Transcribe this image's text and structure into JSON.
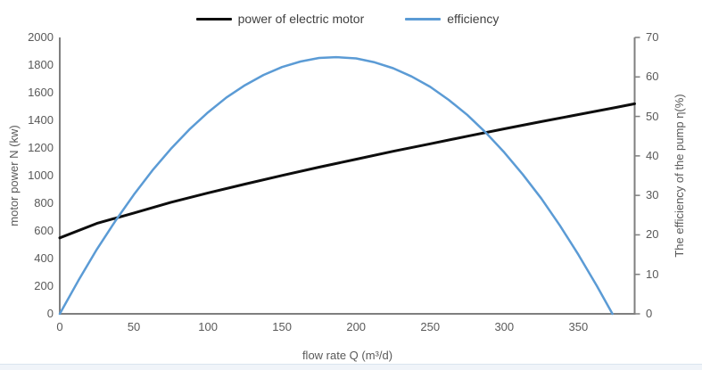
{
  "chart_data": {
    "type": "line",
    "title": "",
    "legend_position": "top",
    "grid": false,
    "background_color": "#ffffff",
    "axis_color": "#7f7f7f",
    "text_color": "#595959",
    "x": {
      "title": "flow rate Q (m³/d)",
      "min": 0,
      "max": 388,
      "ticks": [
        0,
        50,
        100,
        150,
        200,
        250,
        300,
        350
      ]
    },
    "y_left": {
      "title": "motor power N (kw)",
      "min": 0,
      "max": 2000,
      "ticks": [
        0,
        200,
        400,
        600,
        800,
        1000,
        1200,
        1400,
        1600,
        1800,
        2000
      ]
    },
    "y_right": {
      "title": "The efficiency of the pump η(%)",
      "min": 0,
      "max": 70,
      "ticks": [
        0,
        10,
        20,
        30,
        40,
        50,
        60,
        70
      ]
    },
    "series": [
      {
        "name": "power of electric motor",
        "axis": "left",
        "color": "#0d0d0d",
        "width": 3,
        "points": [
          [
            0,
            550
          ],
          [
            25,
            654
          ],
          [
            50,
            730
          ],
          [
            75,
            807
          ],
          [
            100,
            875
          ],
          [
            125,
            939
          ],
          [
            150,
            1001
          ],
          [
            175,
            1061
          ],
          [
            200,
            1119
          ],
          [
            225,
            1176
          ],
          [
            250,
            1230
          ],
          [
            275,
            1285
          ],
          [
            300,
            1339
          ],
          [
            325,
            1391
          ],
          [
            350,
            1442
          ],
          [
            375,
            1493
          ],
          [
            388,
            1520
          ]
        ]
      },
      {
        "name": "efficiency",
        "axis": "right",
        "color": "#5b9bd5",
        "width": 2.5,
        "points": [
          [
            0,
            0
          ],
          [
            12.5,
            8.4
          ],
          [
            25,
            16.3
          ],
          [
            37.5,
            23.5
          ],
          [
            50,
            30.2
          ],
          [
            62.5,
            36.3
          ],
          [
            75,
            41.8
          ],
          [
            87.5,
            46.7
          ],
          [
            100,
            51.0
          ],
          [
            112.5,
            54.8
          ],
          [
            125,
            57.9
          ],
          [
            137.5,
            60.5
          ],
          [
            150,
            62.5
          ],
          [
            162.5,
            63.9
          ],
          [
            175,
            64.8
          ],
          [
            186.5,
            65.0
          ],
          [
            200,
            64.7
          ],
          [
            212.5,
            63.7
          ],
          [
            225,
            62.2
          ],
          [
            237.5,
            60.1
          ],
          [
            250,
            57.5
          ],
          [
            262.5,
            54.2
          ],
          [
            275,
            50.4
          ],
          [
            287.5,
            45.9
          ],
          [
            300,
            40.9
          ],
          [
            312.5,
            35.3
          ],
          [
            325,
            29.2
          ],
          [
            337.5,
            22.4
          ],
          [
            350,
            15.0
          ],
          [
            362.5,
            7.1
          ],
          [
            373,
            0
          ]
        ]
      }
    ]
  }
}
